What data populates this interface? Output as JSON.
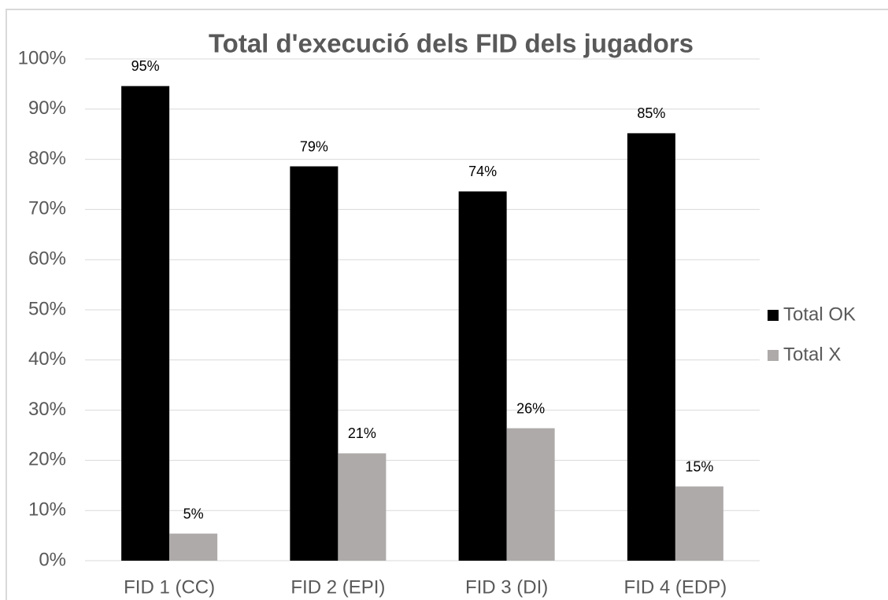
{
  "chart_data": {
    "type": "bar",
    "title": "Total d'execució dels FID dels jugadors",
    "categories": [
      "FID 1 (CC)",
      "FID 2 (EPI)",
      "FID 3 (DI)",
      "FID 4  (EDP)"
    ],
    "series": [
      {
        "name": "Total OK",
        "color": "#000000",
        "values": [
          94.6,
          78.6,
          73.6,
          85.2
        ],
        "value_labels": [
          "95%",
          "79%",
          "74%",
          "85%"
        ]
      },
      {
        "name": "Total X",
        "color": "#aeaaaa",
        "values": [
          5.4,
          21.4,
          26.4,
          14.8
        ],
        "value_labels": [
          "5%",
          "21%",
          "26%",
          "15%"
        ]
      }
    ],
    "ylim": [
      0,
      100
    ],
    "yticks": [
      {
        "value": 0,
        "label": "0%"
      },
      {
        "value": 10,
        "label": "10%"
      },
      {
        "value": 20,
        "label": "20%"
      },
      {
        "value": 30,
        "label": "30%"
      },
      {
        "value": 40,
        "label": "40%"
      },
      {
        "value": 50,
        "label": "50%"
      },
      {
        "value": 60,
        "label": "60%"
      },
      {
        "value": 70,
        "label": "70%"
      },
      {
        "value": 80,
        "label": "80%"
      },
      {
        "value": 90,
        "label": "90%"
      },
      {
        "value": 100,
        "label": "100%"
      }
    ],
    "grid": true,
    "legend": "right"
  }
}
